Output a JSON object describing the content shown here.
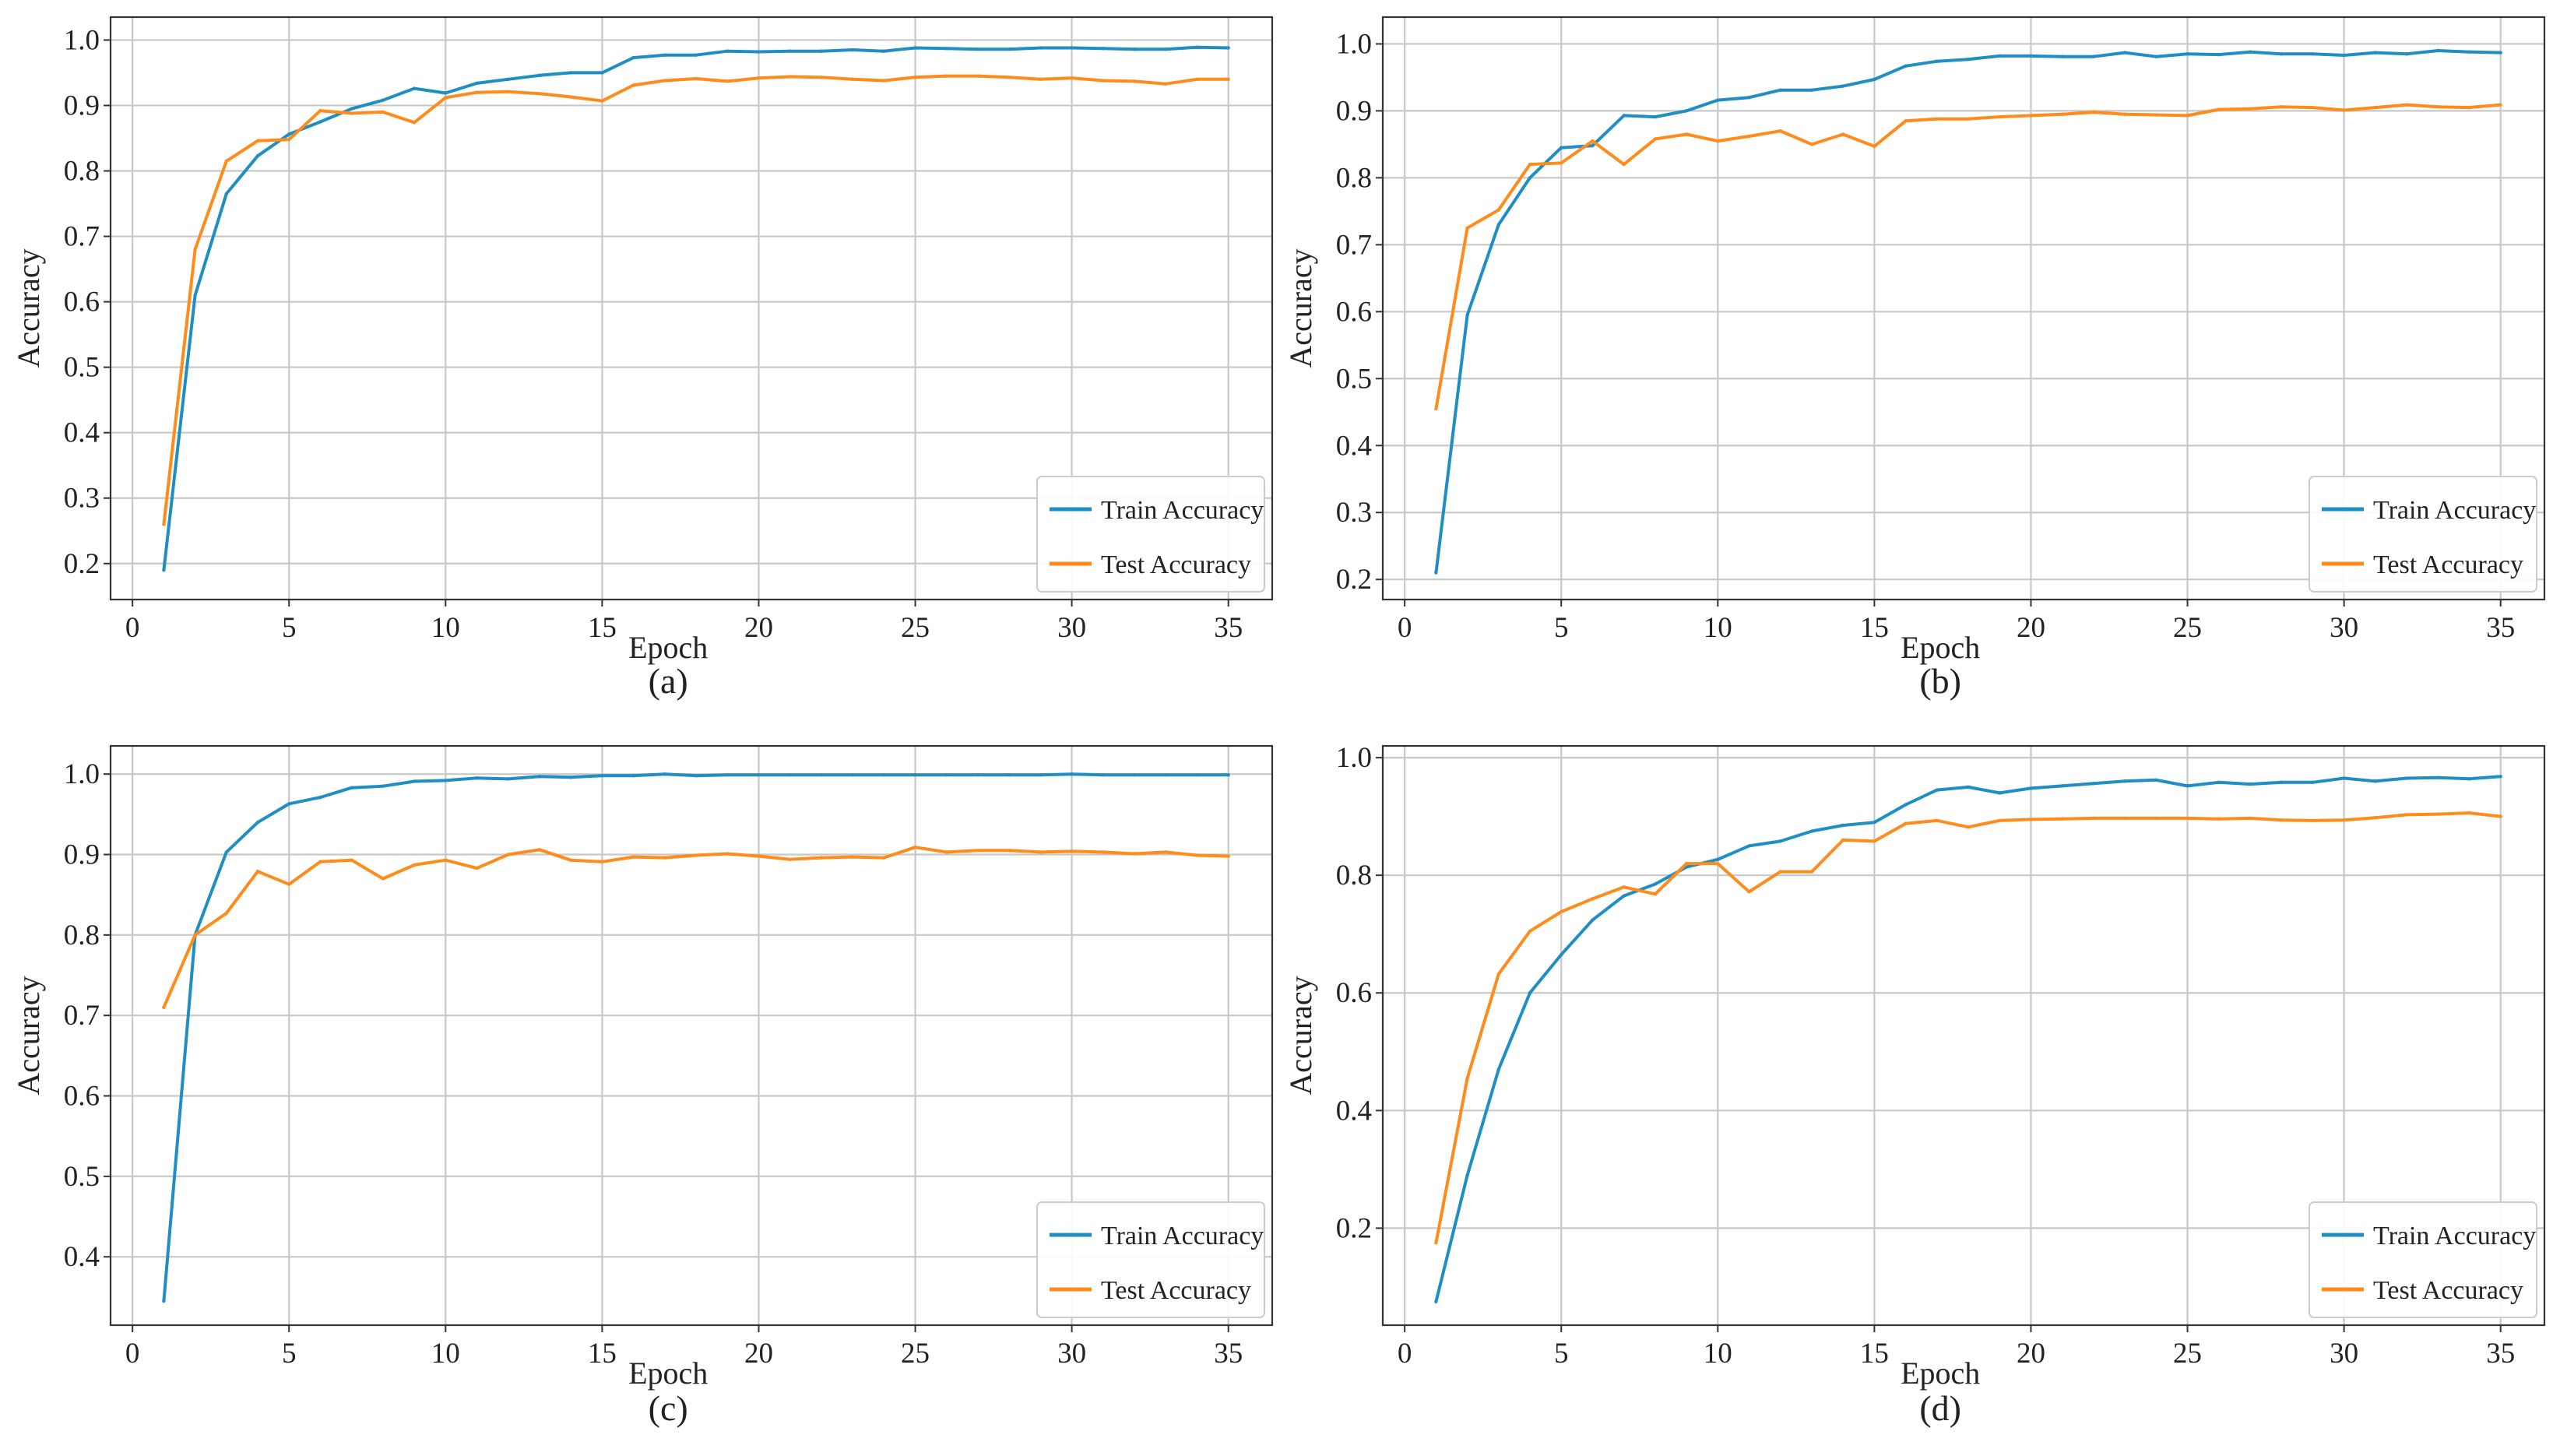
{
  "colors": {
    "train": "#1f8ec2",
    "test": "#ff8c1a",
    "grid": "#c8c8c8",
    "axis": "#333333"
  },
  "chart_data": [
    {
      "type": "line",
      "caption": "(a)",
      "xlabel": "Epoch",
      "ylabel": "Accuracy",
      "xlim": [
        -0.7,
        36.4
      ],
      "ylim": [
        0.145,
        1.035
      ],
      "xticks": [
        0,
        5,
        10,
        15,
        20,
        25,
        30,
        35
      ],
      "yticks": [
        0.2,
        0.3,
        0.4,
        0.5,
        0.6,
        0.7,
        0.8,
        0.9,
        1.0
      ],
      "ytick_labels": [
        "0.2",
        "0.3",
        "0.4",
        "0.5",
        "0.6",
        "0.7",
        "0.8",
        "0.9",
        "1.0"
      ],
      "grid": true,
      "legend": "bottom-right",
      "x": [
        1,
        2,
        3,
        4,
        5,
        6,
        7,
        8,
        9,
        10,
        11,
        12,
        13,
        14,
        15,
        16,
        17,
        18,
        19,
        20,
        21,
        22,
        23,
        24,
        25,
        26,
        27,
        28,
        29,
        30,
        31,
        32,
        33,
        34,
        35
      ],
      "series": [
        {
          "name": "Train Accuracy",
          "color": "train",
          "values": [
            0.19,
            0.61,
            0.765,
            0.823,
            0.856,
            0.875,
            0.895,
            0.908,
            0.926,
            0.919,
            0.934,
            0.94,
            0.946,
            0.95,
            0.95,
            0.973,
            0.977,
            0.977,
            0.983,
            0.982,
            0.983,
            0.983,
            0.985,
            0.983,
            0.988,
            0.987,
            0.986,
            0.986,
            0.988,
            0.988,
            0.987,
            0.986,
            0.986,
            0.989,
            0.988
          ]
        },
        {
          "name": "Test Accuracy",
          "color": "test",
          "values": [
            0.26,
            0.68,
            0.815,
            0.846,
            0.848,
            0.892,
            0.888,
            0.89,
            0.874,
            0.912,
            0.92,
            0.921,
            0.918,
            0.913,
            0.907,
            0.931,
            0.938,
            0.941,
            0.937,
            0.942,
            0.944,
            0.943,
            0.94,
            0.938,
            0.943,
            0.945,
            0.945,
            0.943,
            0.94,
            0.942,
            0.938,
            0.937,
            0.933,
            0.94,
            0.94
          ]
        }
      ]
    },
    {
      "type": "line",
      "caption": "(b)",
      "xlabel": "Epoch",
      "ylabel": "Accuracy",
      "xlim": [
        -0.7,
        36.4
      ],
      "ylim": [
        0.17,
        1.04
      ],
      "xticks": [
        0,
        5,
        10,
        15,
        20,
        25,
        30,
        35
      ],
      "yticks": [
        0.2,
        0.3,
        0.4,
        0.5,
        0.6,
        0.7,
        0.8,
        0.9,
        1.0
      ],
      "ytick_labels": [
        "0.2",
        "0.3",
        "0.4",
        "0.5",
        "0.6",
        "0.7",
        "0.8",
        "0.9",
        "1.0"
      ],
      "grid": true,
      "legend": "bottom-right",
      "x": [
        1,
        2,
        3,
        4,
        5,
        6,
        7,
        8,
        9,
        10,
        11,
        12,
        13,
        14,
        15,
        16,
        17,
        18,
        19,
        20,
        21,
        22,
        23,
        24,
        25,
        26,
        27,
        28,
        29,
        30,
        31,
        32,
        33,
        34,
        35
      ],
      "series": [
        {
          "name": "Train Accuracy",
          "color": "train",
          "values": [
            0.21,
            0.595,
            0.73,
            0.8,
            0.845,
            0.848,
            0.893,
            0.891,
            0.9,
            0.916,
            0.92,
            0.931,
            0.931,
            0.937,
            0.947,
            0.967,
            0.974,
            0.977,
            0.982,
            0.982,
            0.981,
            0.981,
            0.987,
            0.981,
            0.985,
            0.984,
            0.988,
            0.985,
            0.985,
            0.983,
            0.987,
            0.985,
            0.99,
            0.988,
            0.987
          ]
        },
        {
          "name": "Test Accuracy",
          "color": "test",
          "values": [
            0.455,
            0.725,
            0.752,
            0.82,
            0.822,
            0.855,
            0.82,
            0.858,
            0.865,
            0.855,
            0.862,
            0.87,
            0.85,
            0.865,
            0.847,
            0.885,
            0.888,
            0.888,
            0.891,
            0.893,
            0.895,
            0.898,
            0.895,
            0.894,
            0.893,
            0.902,
            0.903,
            0.906,
            0.905,
            0.901,
            0.905,
            0.909,
            0.906,
            0.905,
            0.909
          ]
        }
      ]
    },
    {
      "type": "line",
      "caption": "(c)",
      "xlabel": "Epoch",
      "ylabel": "Accuracy",
      "xlim": [
        -0.7,
        36.4
      ],
      "ylim": [
        0.315,
        1.035
      ],
      "xticks": [
        0,
        5,
        10,
        15,
        20,
        25,
        30,
        35
      ],
      "yticks": [
        0.4,
        0.5,
        0.6,
        0.7,
        0.8,
        0.9,
        1.0
      ],
      "ytick_labels": [
        "0.4",
        "0.5",
        "0.6",
        "0.7",
        "0.8",
        "0.9",
        "1.0"
      ],
      "grid": true,
      "legend": "bottom-right",
      "x": [
        1,
        2,
        3,
        4,
        5,
        6,
        7,
        8,
        9,
        10,
        11,
        12,
        13,
        14,
        15,
        16,
        17,
        18,
        19,
        20,
        21,
        22,
        23,
        24,
        25,
        26,
        27,
        28,
        29,
        30,
        31,
        32,
        33,
        34,
        35
      ],
      "series": [
        {
          "name": "Train Accuracy",
          "color": "train",
          "values": [
            0.345,
            0.8,
            0.903,
            0.94,
            0.963,
            0.971,
            0.983,
            0.985,
            0.991,
            0.992,
            0.995,
            0.994,
            0.997,
            0.996,
            0.998,
            0.998,
            1.0,
            0.998,
            0.999,
            0.999,
            0.999,
            0.999,
            0.999,
            0.999,
            0.999,
            0.999,
            0.999,
            0.999,
            0.999,
            1.0,
            0.999,
            0.999,
            0.999,
            0.999,
            0.999
          ]
        },
        {
          "name": "Test Accuracy",
          "color": "test",
          "values": [
            0.71,
            0.8,
            0.827,
            0.879,
            0.863,
            0.891,
            0.893,
            0.87,
            0.887,
            0.893,
            0.883,
            0.9,
            0.906,
            0.893,
            0.891,
            0.897,
            0.896,
            0.899,
            0.901,
            0.898,
            0.894,
            0.896,
            0.897,
            0.896,
            0.909,
            0.903,
            0.905,
            0.905,
            0.903,
            0.904,
            0.903,
            0.901,
            0.903,
            0.899,
            0.898
          ]
        }
      ]
    },
    {
      "type": "line",
      "caption": "(d)",
      "xlabel": "Epoch",
      "ylabel": "Accuracy",
      "xlim": [
        -0.7,
        36.4
      ],
      "ylim": [
        0.035,
        1.02
      ],
      "xticks": [
        0,
        5,
        10,
        15,
        20,
        25,
        30,
        35
      ],
      "yticks": [
        0.2,
        0.4,
        0.6,
        0.8,
        1.0
      ],
      "ytick_labels": [
        "0.2",
        "0.4",
        "0.6",
        "0.8",
        "1.0"
      ],
      "grid": true,
      "legend": "bottom-right",
      "x": [
        1,
        2,
        3,
        4,
        5,
        6,
        7,
        8,
        9,
        10,
        11,
        12,
        13,
        14,
        15,
        16,
        17,
        18,
        19,
        20,
        21,
        22,
        23,
        24,
        25,
        26,
        27,
        28,
        29,
        30,
        31,
        32,
        33,
        34,
        35
      ],
      "series": [
        {
          "name": "Train Accuracy",
          "color": "train",
          "values": [
            0.075,
            0.29,
            0.47,
            0.6,
            0.665,
            0.724,
            0.765,
            0.785,
            0.814,
            0.827,
            0.85,
            0.858,
            0.875,
            0.885,
            0.89,
            0.92,
            0.945,
            0.95,
            0.94,
            0.948,
            0.952,
            0.956,
            0.96,
            0.962,
            0.952,
            0.958,
            0.955,
            0.958,
            0.958,
            0.965,
            0.96,
            0.965,
            0.966,
            0.964,
            0.968
          ]
        },
        {
          "name": "Test Accuracy",
          "color": "test",
          "values": [
            0.175,
            0.455,
            0.632,
            0.705,
            0.738,
            0.76,
            0.78,
            0.768,
            0.82,
            0.82,
            0.772,
            0.806,
            0.806,
            0.86,
            0.858,
            0.888,
            0.893,
            0.882,
            0.893,
            0.895,
            0.896,
            0.897,
            0.897,
            0.897,
            0.897,
            0.896,
            0.897,
            0.894,
            0.893,
            0.894,
            0.898,
            0.903,
            0.904,
            0.906,
            0.9
          ]
        }
      ]
    }
  ]
}
